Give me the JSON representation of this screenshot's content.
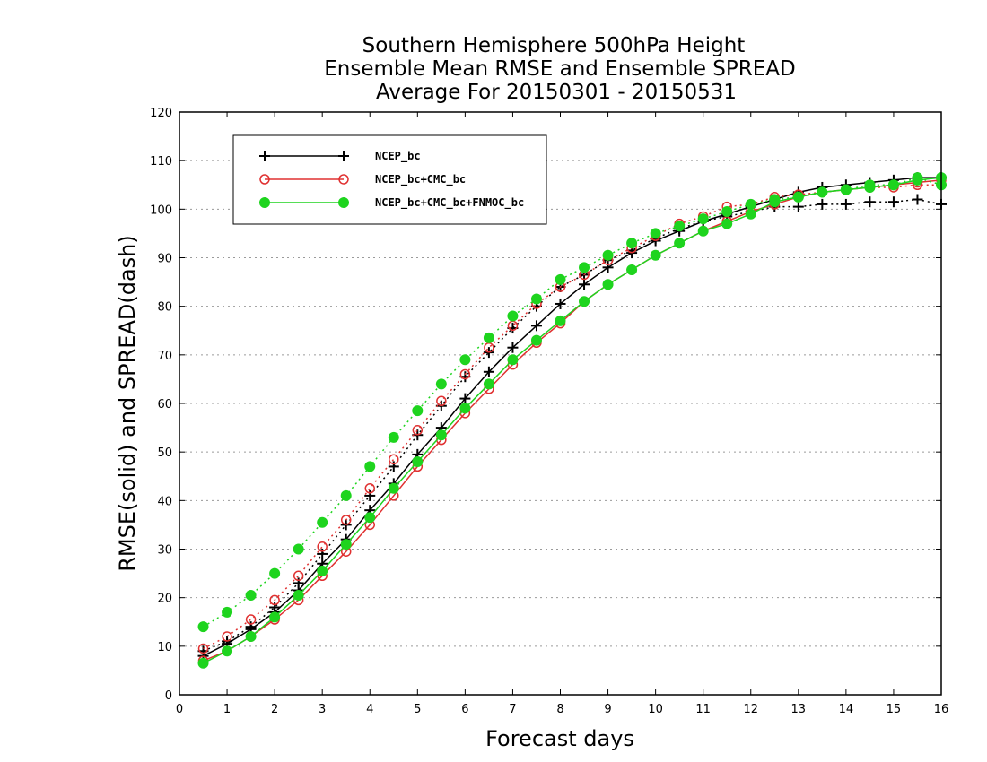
{
  "chart_data": {
    "type": "line",
    "title": [
      "Southern Hemisphere 500hPa Height",
      "Ensemble Mean RMSE and Ensemble SPREAD",
      "Average For 20150301 - 20150531"
    ],
    "xlabel": "Forecast days",
    "ylabel": "RMSE(solid) and SPREAD(dash)",
    "xlim": [
      0,
      16
    ],
    "ylim": [
      0,
      120
    ],
    "xticks": [
      0,
      1,
      2,
      3,
      4,
      5,
      6,
      7,
      8,
      9,
      10,
      11,
      12,
      13,
      14,
      15,
      16
    ],
    "yticks": [
      0,
      10,
      20,
      30,
      40,
      50,
      60,
      70,
      80,
      90,
      100,
      110,
      120
    ],
    "grid": "horizontal dotted",
    "legend_position": "top-left",
    "x": [
      0.5,
      1,
      1.5,
      2,
      2.5,
      3,
      3.5,
      4,
      4.5,
      5,
      5.5,
      6,
      6.5,
      7,
      7.5,
      8,
      8.5,
      9,
      9.5,
      10,
      10.5,
      11,
      11.5,
      12,
      12.5,
      13,
      13.5,
      14,
      14.5,
      15,
      15.5,
      16
    ],
    "series": [
      {
        "name": "NCEP_bc",
        "color": "#000000",
        "marker": "plus",
        "rmse": [
          8.0,
          10.5,
          13.5,
          17.0,
          21.5,
          27.0,
          32.0,
          38.0,
          43.5,
          49.5,
          55.0,
          61.0,
          66.5,
          71.5,
          76.0,
          80.5,
          84.5,
          88.0,
          91.0,
          93.5,
          95.5,
          97.5,
          99.0,
          100.5,
          102.0,
          103.5,
          104.5,
          105.0,
          105.5,
          106.0,
          106.5,
          106.5
        ],
        "spread": [
          9.0,
          11.0,
          14.0,
          18.0,
          23.0,
          29.0,
          35.0,
          41.0,
          47.0,
          53.5,
          59.5,
          65.5,
          70.5,
          75.5,
          80.0,
          84.0,
          86.5,
          89.5,
          91.5,
          94.0,
          96.0,
          97.5,
          98.5,
          99.5,
          100.5,
          100.5,
          101.0,
          101.0,
          101.5,
          101.5,
          102.0,
          101.0
        ]
      },
      {
        "name": "NCEP_bc+CMC_bc",
        "color": "#e03030",
        "marker": "circle-open",
        "rmse": [
          7.0,
          9.0,
          12.0,
          15.5,
          19.5,
          24.5,
          29.5,
          35.0,
          41.0,
          47.0,
          52.5,
          58.0,
          63.0,
          68.0,
          72.5,
          76.5,
          81.0,
          84.5,
          87.5,
          90.5,
          93.0,
          95.5,
          97.5,
          99.5,
          101.0,
          102.5,
          103.5,
          104.0,
          104.5,
          105.0,
          105.5,
          106.0
        ],
        "spread": [
          9.5,
          12.0,
          15.5,
          19.5,
          24.5,
          30.5,
          36.0,
          42.5,
          48.5,
          54.5,
          60.5,
          66.0,
          71.5,
          76.0,
          80.5,
          84.0,
          86.5,
          89.5,
          92.0,
          94.5,
          97.0,
          98.5,
          100.5,
          101.0,
          102.5,
          103.0,
          103.5,
          104.0,
          104.5,
          104.5,
          105.0,
          105.0
        ]
      },
      {
        "name": "NCEP_bc+CMC_bc+FNMOC_bc",
        "color": "#1ed41e",
        "marker": "circle-filled",
        "rmse": [
          6.5,
          9.0,
          12.0,
          16.0,
          20.5,
          25.5,
          31.0,
          36.5,
          42.5,
          48.0,
          53.5,
          59.0,
          64.0,
          69.0,
          73.0,
          77.0,
          81.0,
          84.5,
          87.5,
          90.5,
          93.0,
          95.5,
          97.0,
          99.0,
          101.5,
          102.5,
          103.5,
          104.0,
          104.5,
          105.0,
          106.0,
          106.5
        ],
        "spread": [
          14.0,
          17.0,
          20.5,
          25.0,
          30.0,
          35.5,
          41.0,
          47.0,
          53.0,
          58.5,
          64.0,
          69.0,
          73.5,
          78.0,
          81.5,
          85.5,
          88.0,
          90.5,
          93.0,
          95.0,
          96.5,
          98.0,
          99.5,
          101.0,
          102.0,
          102.5,
          103.5,
          104.0,
          105.0,
          105.0,
          106.5,
          105.0
        ]
      }
    ]
  }
}
